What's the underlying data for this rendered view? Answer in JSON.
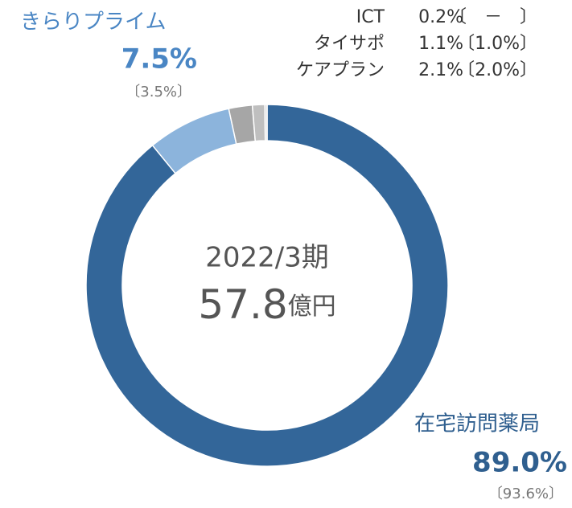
{
  "chart_data": {
    "type": "donut",
    "categories": [
      "在宅訪問薬局",
      "きらりプライム",
      "ケアプラン",
      "タイサポ",
      "ICT"
    ],
    "values": [
      89.0,
      7.5,
      2.1,
      1.1,
      0.2
    ],
    "value_labels": [
      "89.0%",
      "7.5%",
      "2.1%",
      "1.1%",
      "0.2%"
    ],
    "previous_labels": [
      "〔93.6%〕",
      "〔3.5%〕",
      "〔2.0%〕",
      "〔1.0%〕",
      "〔　－　〕"
    ],
    "colors": [
      "#336699",
      "#8cb4dc",
      "#a6a6a6",
      "#bfbfbf",
      "#d9d9d9"
    ],
    "center": {
      "period": "2022/3期",
      "total": 57.8,
      "unit": "億円"
    }
  }
}
